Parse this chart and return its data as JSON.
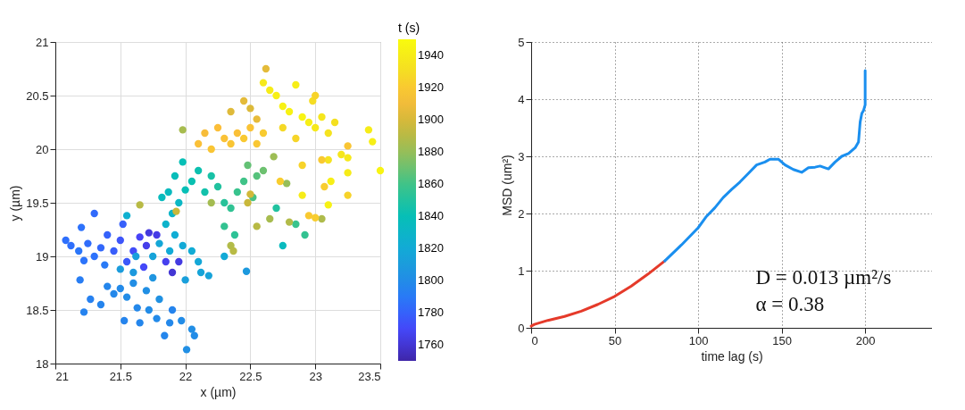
{
  "chart_data": [
    {
      "type": "scatter",
      "xlabel": "x (µm)",
      "ylabel": "y (µm)",
      "clabel": "t (s)",
      "xlim": [
        21,
        23.5
      ],
      "xticks": [
        21,
        21.5,
        22,
        22.5,
        23,
        23.5
      ],
      "ylim": [
        18,
        21
      ],
      "yticks": [
        18,
        18.5,
        19,
        19.5,
        20,
        20.5,
        21
      ],
      "clim": [
        1750,
        1950
      ],
      "cticks": [
        1760,
        1780,
        1800,
        1820,
        1840,
        1860,
        1880,
        1900,
        1920,
        1940
      ],
      "grid": true,
      "marker": "circle",
      "x": [
        21.08,
        21.12,
        21.18,
        21.2,
        21.22,
        21.25,
        21.3,
        21.3,
        21.35,
        21.38,
        21.4,
        21.45,
        21.5,
        21.52,
        21.55,
        21.6,
        21.65,
        21.7,
        21.72,
        21.68,
        21.78,
        21.85,
        21.9,
        21.95,
        21.19,
        21.22,
        21.27,
        21.35,
        21.4,
        21.45,
        21.5,
        21.53,
        21.55,
        21.6,
        21.63,
        21.65,
        21.7,
        21.72,
        21.78,
        21.8,
        21.84,
        21.88,
        21.9,
        21.97,
        22.01,
        22.05,
        22.07,
        21.75,
        21.6,
        21.5,
        21.62,
        21.75,
        21.8,
        21.88,
        21.92,
        21.98,
        22.05,
        22.1,
        22.12,
        22.18,
        22.0,
        22.3,
        22.47,
        21.55,
        21.85,
        21.9,
        21.95,
        21.87,
        21.82,
        21.92,
        22.0,
        22.05,
        22.1,
        22.15,
        21.98,
        22.2,
        22.25,
        22.3,
        22.35,
        22.4,
        22.45,
        22.3,
        22.38,
        22.52,
        22.55,
        22.48,
        22.6,
        22.7,
        22.85,
        22.92,
        22.75,
        22.2,
        22.35,
        22.37,
        22.55,
        22.65,
        22.8,
        23.05,
        22.78,
        22.48,
        22.5,
        22.68,
        21.65,
        21.93,
        21.98,
        22.1,
        22.15,
        22.2,
        22.25,
        22.3,
        22.35,
        22.4,
        22.45,
        22.5,
        22.55,
        22.6,
        22.35,
        22.45,
        22.5,
        22.55,
        22.62,
        22.6,
        22.65,
        22.7,
        22.75,
        22.8,
        22.85,
        22.9,
        22.95,
        23.0,
        23.05,
        23.1,
        23.15,
        22.98,
        23.0,
        22.75,
        22.85,
        23.1,
        23.2,
        23.25,
        23.41,
        23.44,
        23.5,
        23.25,
        23.12,
        23.1,
        22.9,
        23.25,
        23.07,
        22.95,
        23.0,
        22.73,
        23.25,
        23.05,
        22.9
      ],
      "values": [
        19.15,
        19.1,
        19.05,
        19.27,
        18.96,
        19.12,
        19.0,
        19.4,
        19.08,
        18.92,
        19.2,
        19.05,
        19.15,
        19.3,
        18.95,
        19.05,
        19.18,
        19.1,
        19.22,
        18.9,
        19.2,
        18.95,
        18.85,
        18.95,
        18.78,
        18.48,
        18.6,
        18.55,
        18.72,
        18.65,
        18.7,
        18.4,
        18.62,
        18.75,
        18.52,
        18.38,
        18.68,
        18.5,
        18.42,
        18.6,
        18.26,
        18.38,
        18.5,
        18.4,
        18.13,
        18.32,
        18.26,
        18.8,
        18.85,
        18.88,
        19.0,
        19.0,
        19.12,
        19.05,
        19.2,
        19.1,
        19.05,
        18.95,
        18.85,
        18.82,
        18.78,
        19.0,
        18.86,
        19.38,
        19.3,
        19.4,
        19.5,
        19.6,
        19.55,
        19.75,
        19.62,
        19.7,
        19.8,
        19.6,
        19.88,
        19.75,
        19.65,
        19.5,
        19.45,
        19.6,
        19.7,
        19.28,
        19.2,
        19.55,
        19.75,
        19.85,
        19.8,
        19.45,
        19.3,
        19.2,
        19.1,
        19.5,
        19.1,
        19.05,
        19.28,
        19.35,
        19.32,
        19.35,
        19.68,
        19.5,
        19.58,
        19.93,
        19.48,
        19.42,
        20.18,
        20.05,
        20.15,
        20.0,
        20.2,
        20.1,
        20.05,
        20.15,
        20.1,
        20.2,
        20.05,
        20.15,
        20.35,
        20.45,
        20.38,
        20.28,
        20.75,
        20.62,
        20.55,
        20.5,
        20.4,
        20.35,
        20.6,
        20.3,
        20.25,
        20.2,
        20.3,
        20.15,
        20.25,
        20.45,
        20.5,
        20.2,
        20.1,
        19.9,
        19.95,
        19.92,
        20.18,
        20.07,
        19.8,
        19.78,
        19.7,
        19.48,
        19.57,
        19.57,
        19.65,
        19.38,
        19.36,
        19.7,
        20.03,
        19.9,
        19.85
      ],
      "cvalues": [
        1785,
        1785,
        1788,
        1786,
        1787,
        1784,
        1786,
        1783,
        1782,
        1790,
        1780,
        1778,
        1775,
        1779,
        1776,
        1772,
        1768,
        1765,
        1762,
        1770,
        1764,
        1766,
        1760,
        1763,
        1792,
        1795,
        1794,
        1796,
        1797,
        1798,
        1799,
        1796,
        1800,
        1801,
        1798,
        1797,
        1802,
        1800,
        1799,
        1803,
        1797,
        1798,
        1796,
        1800,
        1802,
        1801,
        1800,
        1805,
        1808,
        1810,
        1812,
        1815,
        1818,
        1820,
        1822,
        1819,
        1821,
        1818,
        1816,
        1815,
        1812,
        1820,
        1808,
        1825,
        1828,
        1830,
        1832,
        1835,
        1836,
        1838,
        1840,
        1842,
        1843,
        1845,
        1840,
        1847,
        1850,
        1852,
        1855,
        1858,
        1860,
        1856,
        1854,
        1862,
        1865,
        1868,
        1870,
        1850,
        1858,
        1856,
        1835,
        1884,
        1888,
        1890,
        1890,
        1885,
        1888,
        1887,
        1880,
        1895,
        1898,
        1882,
        1890,
        1895,
        1885,
        1915,
        1912,
        1918,
        1914,
        1916,
        1918,
        1915,
        1920,
        1917,
        1919,
        1921,
        1903,
        1905,
        1902,
        1906,
        1905,
        1938,
        1940,
        1942,
        1943,
        1944,
        1941,
        1945,
        1942,
        1938,
        1936,
        1934,
        1932,
        1930,
        1925,
        1928,
        1926,
        1934,
        1936,
        1938,
        1940,
        1942,
        1945,
        1940,
        1942,
        1944,
        1940,
        1925,
        1922,
        1920,
        1922,
        1922,
        1918,
        1920,
        1925
      ]
    },
    {
      "type": "line",
      "xlabel": "time lag (s)",
      "ylabel": "MSD (um²)",
      "xlim": [
        0,
        240
      ],
      "xticks": [
        0,
        50,
        100,
        150,
        200
      ],
      "ylim": [
        0,
        5
      ],
      "yticks": [
        0,
        1,
        2,
        3,
        4,
        5
      ],
      "grid": true,
      "marker": "none",
      "line_style": "solid",
      "annotations": [
        "D = 0.013 µm²/s",
        "α = 0.38"
      ],
      "series": [
        {
          "color": "#e53a2a",
          "x": [
            0,
            2,
            10,
            20,
            30,
            40,
            50,
            60,
            70,
            80
          ],
          "values": [
            0.03,
            0.06,
            0.13,
            0.2,
            0.29,
            0.41,
            0.55,
            0.73,
            0.94,
            1.17
          ]
        },
        {
          "color": "#1a8fef",
          "x": [
            80,
            90,
            100,
            105,
            110,
            115,
            120,
            125,
            130,
            135,
            140,
            143,
            148,
            152,
            157,
            162,
            166,
            170,
            173,
            176,
            178,
            182,
            186,
            190,
            194,
            196,
            197,
            198,
            199,
            200,
            200,
            200,
            200
          ],
          "values": [
            1.17,
            1.45,
            1.75,
            1.95,
            2.1,
            2.28,
            2.42,
            2.55,
            2.7,
            2.85,
            2.9,
            2.95,
            2.95,
            2.85,
            2.77,
            2.72,
            2.8,
            2.81,
            2.83,
            2.8,
            2.78,
            2.9,
            3.0,
            3.05,
            3.15,
            3.25,
            3.6,
            3.75,
            3.8,
            3.9,
            4.2,
            4.3,
            4.5
          ]
        }
      ]
    }
  ]
}
